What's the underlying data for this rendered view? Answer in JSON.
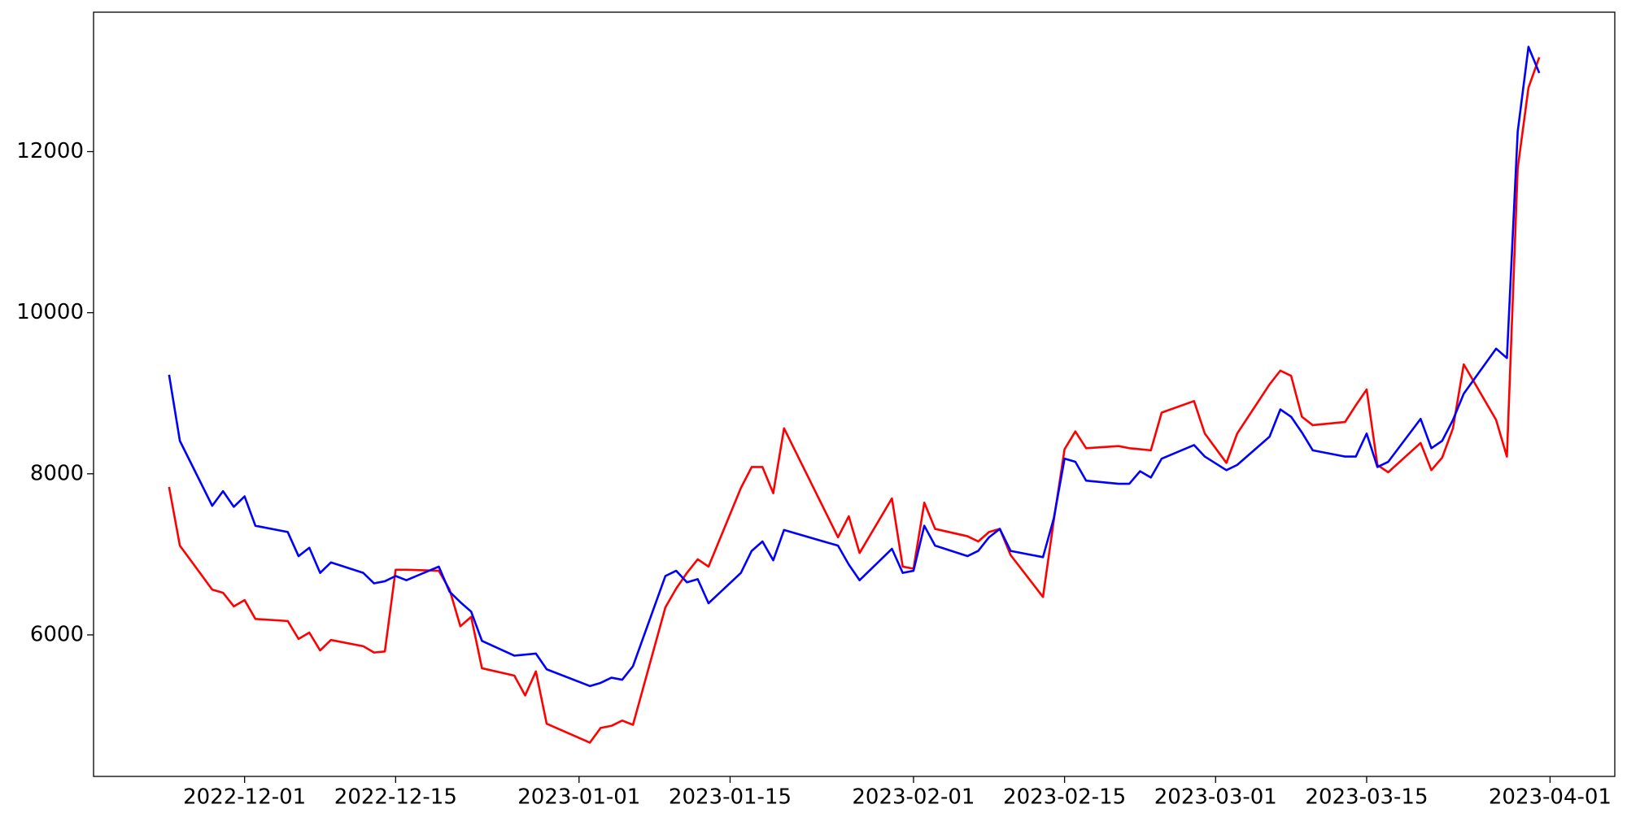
{
  "chart_data": {
    "type": "line",
    "x": [
      "2022-11-24",
      "2022-11-25",
      "2022-11-28",
      "2022-11-29",
      "2022-11-30",
      "2022-12-01",
      "2022-12-02",
      "2022-12-05",
      "2022-12-06",
      "2022-12-07",
      "2022-12-08",
      "2022-12-09",
      "2022-12-12",
      "2022-12-13",
      "2022-12-14",
      "2022-12-15",
      "2022-12-16",
      "2022-12-19",
      "2022-12-20",
      "2022-12-21",
      "2022-12-22",
      "2022-12-23",
      "2022-12-26",
      "2022-12-27",
      "2022-12-28",
      "2022-12-29",
      "2023-01-02",
      "2023-01-03",
      "2023-01-04",
      "2023-01-05",
      "2023-01-06",
      "2023-01-09",
      "2023-01-10",
      "2023-01-11",
      "2023-01-12",
      "2023-01-13",
      "2023-01-16",
      "2023-01-17",
      "2023-01-18",
      "2023-01-19",
      "2023-01-20",
      "2023-01-25",
      "2023-01-26",
      "2023-01-27",
      "2023-01-30",
      "2023-01-31",
      "2023-02-01",
      "2023-02-02",
      "2023-02-03",
      "2023-02-06",
      "2023-02-07",
      "2023-02-08",
      "2023-02-09",
      "2023-02-10",
      "2023-02-13",
      "2023-02-14",
      "2023-02-15",
      "2023-02-16",
      "2023-02-17",
      "2023-02-20",
      "2023-02-21",
      "2023-02-22",
      "2023-02-23",
      "2023-02-24",
      "2023-02-27",
      "2023-02-28",
      "2023-03-02",
      "2023-03-03",
      "2023-03-06",
      "2023-03-07",
      "2023-03-08",
      "2023-03-09",
      "2023-03-10",
      "2023-03-13",
      "2023-03-14",
      "2023-03-15",
      "2023-03-16",
      "2023-03-17",
      "2023-03-20",
      "2023-03-21",
      "2023-03-22",
      "2023-03-23",
      "2023-03-24",
      "2023-03-27",
      "2023-03-28",
      "2023-03-29",
      "2023-03-30",
      "2023-03-31"
    ],
    "series": [
      {
        "color": "#ff0000",
        "values": [
          7837,
          7108,
          6562,
          6523,
          6354,
          6432,
          6198,
          6172,
          5950,
          6028,
          5807,
          5937,
          5859,
          5781,
          5794,
          6809,
          6809,
          6796,
          6562,
          6107,
          6224,
          5586,
          5495,
          5248,
          5547,
          4897,
          4662,
          4845,
          4871,
          4936,
          4884,
          6341,
          6575,
          6770,
          6939,
          6848,
          7824,
          8084,
          8084,
          7759,
          8565,
          7212,
          7472,
          7017,
          7694,
          6848,
          6822,
          7642,
          7316,
          7225,
          7160,
          7277,
          7316,
          6991,
          6471,
          7420,
          8305,
          8526,
          8318,
          8344,
          8318,
          8305,
          8292,
          8760,
          8903,
          8500,
          8136,
          8500,
          9110,
          9281,
          9216,
          8708,
          8604,
          8643,
          8851,
          9047,
          8110,
          8019,
          8383,
          8045,
          8201,
          8565,
          9359,
          8669,
          8214,
          11792,
          12794,
          13171
        ]
      },
      {
        "color": "#0000ff",
        "values": [
          9229,
          8409,
          7603,
          7785,
          7590,
          7720,
          7355,
          7277,
          6978,
          7082,
          6770,
          6900,
          6770,
          6640,
          6666,
          6731,
          6679,
          6848,
          6536,
          6406,
          6289,
          5925,
          5742,
          5755,
          5768,
          5573,
          5365,
          5404,
          5469,
          5443,
          5612,
          6731,
          6796,
          6653,
          6692,
          6393,
          6770,
          7043,
          7160,
          6926,
          7303,
          7108,
          6874,
          6679,
          7069,
          6770,
          6796,
          7355,
          7108,
          6978,
          7043,
          7212,
          7316,
          7043,
          6965,
          7446,
          8188,
          8149,
          7915,
          7876,
          7876,
          8032,
          7954,
          8188,
          8357,
          8214,
          8045,
          8110,
          8461,
          8799,
          8708,
          8513,
          8292,
          8214,
          8214,
          8500,
          8084,
          8149,
          8682,
          8318,
          8409,
          8669,
          8995,
          9554,
          9437,
          12247,
          13301,
          12976
        ]
      }
    ],
    "xlim": [
      "2022-11-17",
      "2023-04-07"
    ],
    "xticks": [
      "2022-12-01",
      "2022-12-15",
      "2023-01-01",
      "2023-01-15",
      "2023-02-01",
      "2023-02-15",
      "2023-03-01",
      "2023-03-15",
      "2023-04-01"
    ],
    "ylim": [
      4243,
      13731
    ],
    "yticks": [
      6000,
      8000,
      10000,
      12000
    ],
    "grid": false
  }
}
